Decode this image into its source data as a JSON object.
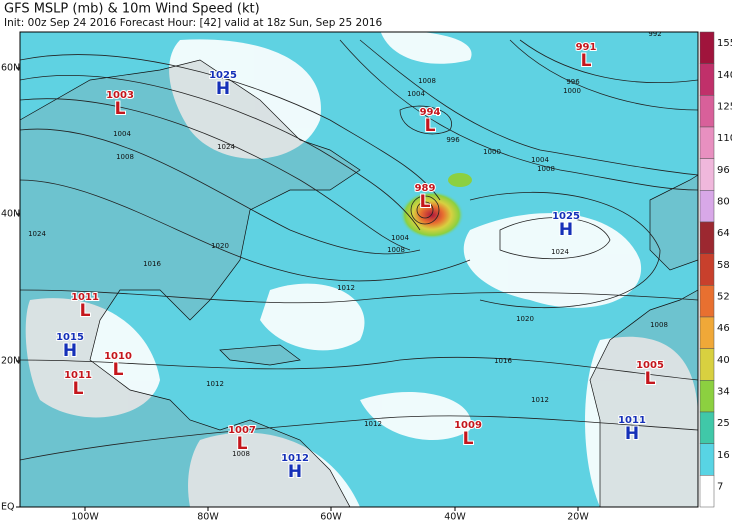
{
  "header": {
    "title": "GFS MSLP (mb) & 10m Wind Speed (kt)",
    "subtitle": "Init: 00z Sep 24 2016   Forecast Hour: [42]   valid at 18z Sun, Sep 25 2016"
  },
  "map": {
    "lon_labels": [
      "100W",
      "80W",
      "60W",
      "40W",
      "20W"
    ],
    "lat_labels": [
      "60N",
      "40N",
      "20N",
      "EQ"
    ],
    "pressure_centers": [
      {
        "symbol": "L",
        "value": "1003"
      },
      {
        "symbol": "H",
        "value": "1025"
      },
      {
        "symbol": "L",
        "value": "994"
      },
      {
        "symbol": "L",
        "value": "991"
      },
      {
        "symbol": "L",
        "value": "989"
      },
      {
        "symbol": "H",
        "value": "1025"
      },
      {
        "symbol": "L",
        "value": "1011"
      },
      {
        "symbol": "H",
        "value": "1015"
      },
      {
        "symbol": "L",
        "value": "1010"
      },
      {
        "symbol": "L",
        "value": "1011"
      },
      {
        "symbol": "L",
        "value": "1007"
      },
      {
        "symbol": "H",
        "value": "1012"
      },
      {
        "symbol": "L",
        "value": "1009"
      },
      {
        "symbol": "L",
        "value": "1005"
      },
      {
        "symbol": "H",
        "value": "1011"
      }
    ],
    "isobar_labels": [
      "992",
      "996",
      "1000",
      "1004",
      "1008",
      "996",
      "1000",
      "1004",
      "1008",
      "1004",
      "1008",
      "1024",
      "1020",
      "1016",
      "1012",
      "1004",
      "1008",
      "1024",
      "1020",
      "1016",
      "1012",
      "1012",
      "1012",
      "1008",
      "1008",
      "1024"
    ]
  },
  "colorbar": {
    "ticks": [
      "155",
      "140",
      "125",
      "110",
      "96",
      "80",
      "64",
      "58",
      "52",
      "46",
      "40",
      "34",
      "25",
      "16",
      "7"
    ],
    "colors": [
      "#a0143c",
      "#c0306a",
      "#d8609a",
      "#e890c0",
      "#f0b8dc",
      "#d8a8e8",
      "#9c2830",
      "#c8402c",
      "#e87030",
      "#f0a838",
      "#d8d040",
      "#8cd040",
      "#40c8a8",
      "#58d4e4",
      "#ffffff"
    ]
  }
}
